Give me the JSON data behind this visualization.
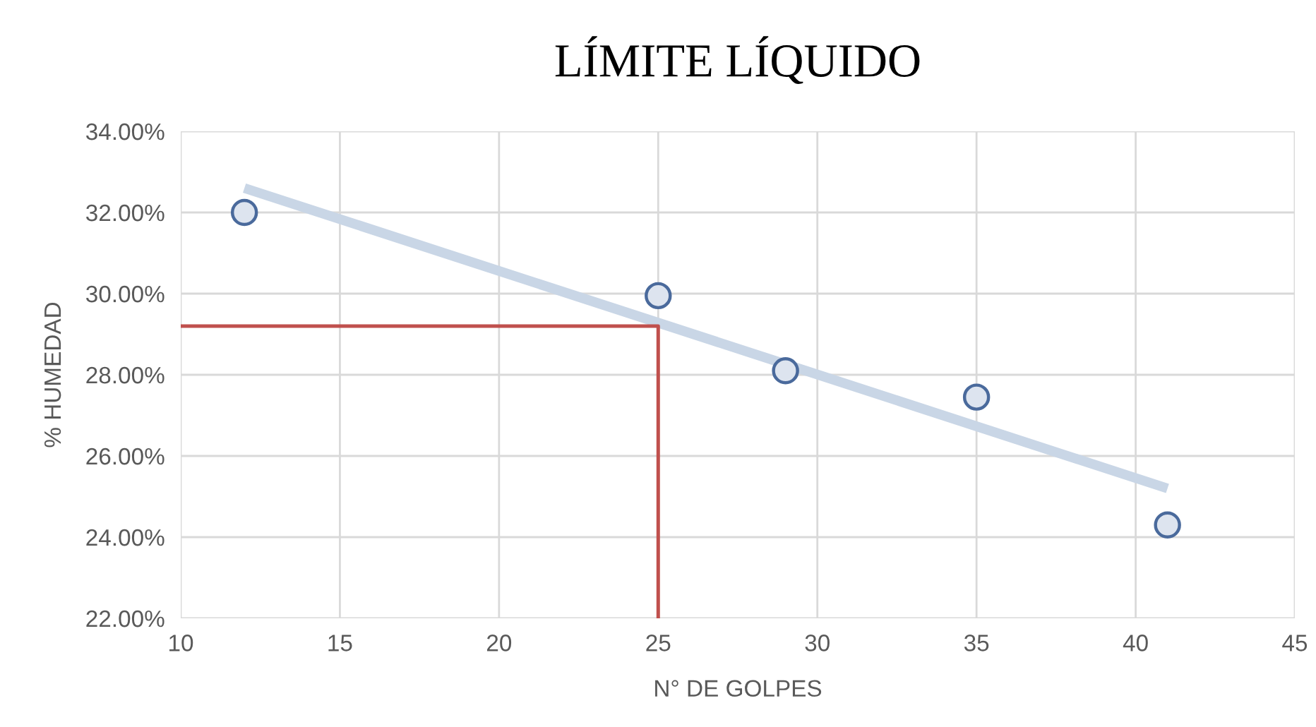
{
  "chart_data": {
    "type": "scatter",
    "title": "LÍMITE LÍQUIDO",
    "xlabel": "N° DE GOLPES",
    "ylabel": "% HUMEDAD",
    "x": [
      12,
      25,
      29,
      35,
      41
    ],
    "series": [
      {
        "type": "line",
        "color": "#c9d6e6",
        "x": [
          12,
          41
        ],
        "values": [
          32.6,
          25.2
        ]
      },
      {
        "color": "#4a6a9c",
        "marker": "circle",
        "values": [
          32.0,
          29.95,
          28.1,
          27.45,
          24.3
        ]
      },
      {
        "type": "line",
        "color": "#c0504d",
        "x": [
          10,
          25,
          25
        ],
        "values": [
          29.2,
          29.2,
          22.0
        ]
      }
    ],
    "xlim": [
      10,
      45
    ],
    "xticks": [
      10,
      15,
      20,
      25,
      30,
      35,
      40,
      45
    ],
    "ylim": [
      22,
      34
    ],
    "yticks": [
      {
        "value": 22,
        "label": "22.00%"
      },
      {
        "value": 24,
        "label": "24.00%"
      },
      {
        "value": 26,
        "label": "26.00%"
      },
      {
        "value": 28,
        "label": "28.00%"
      },
      {
        "value": 30,
        "label": "30.00%"
      },
      {
        "value": 32,
        "label": "32.00%"
      },
      {
        "value": 34,
        "label": "34.00%"
      }
    ],
    "grid": true
  }
}
